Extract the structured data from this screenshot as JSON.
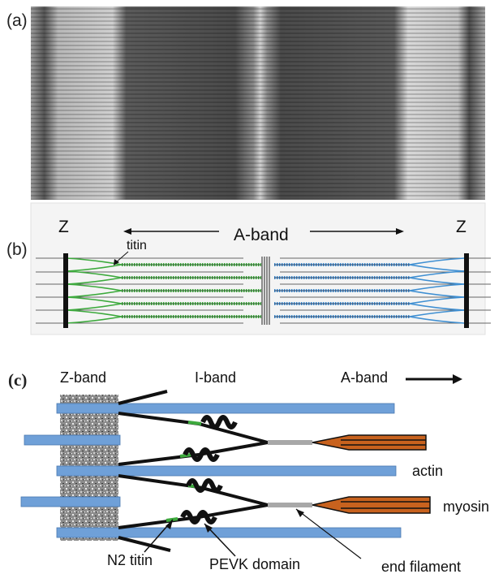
{
  "panel_a": {
    "label": "(a)"
  },
  "panel_b": {
    "label": "(b)",
    "z_left": "Z",
    "z_right": "Z",
    "a_band": "A-band",
    "titin": "titin"
  },
  "panel_c": {
    "label": "(c)",
    "z_band": "Z-band",
    "i_band": "I-band",
    "a_band": "A-band",
    "actin": "actin",
    "myosin": "myosin",
    "n2_titin": "N2 titin",
    "pevk": "PEVK domain",
    "end_filament": "end filament"
  },
  "colors": {
    "actin": "#6fa0d8",
    "myosin": "#c8621e",
    "titin_green": "#3daa3d",
    "titin_blue": "#3f8fd2",
    "zband": "#2b2b2b"
  }
}
